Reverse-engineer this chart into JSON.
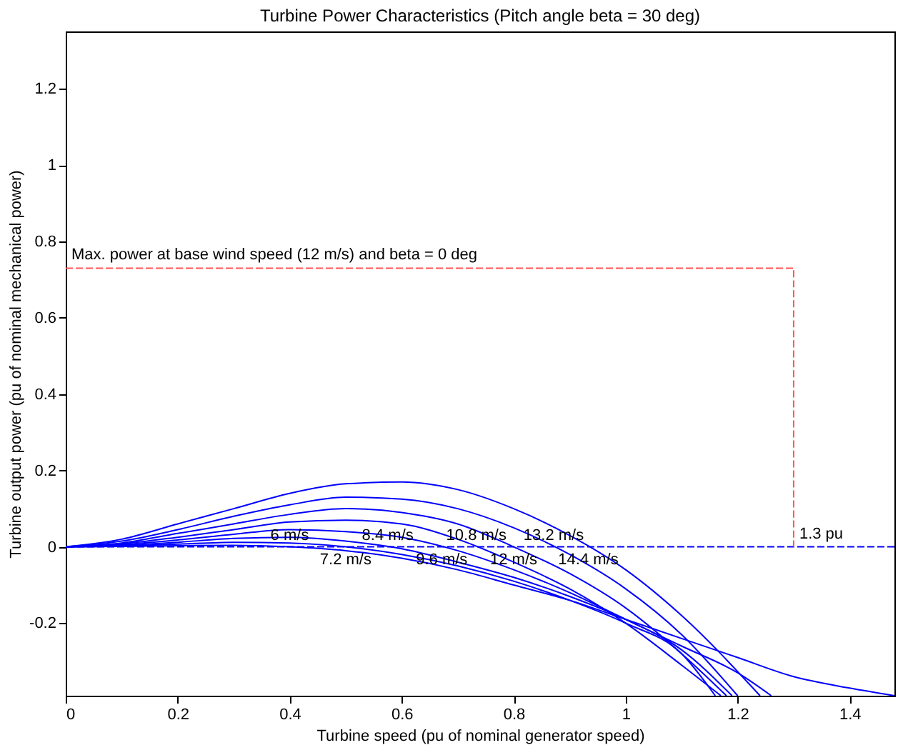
{
  "chart_data": {
    "type": "line",
    "title": "Turbine Power Characteristics (Pitch angle beta = 30 deg)",
    "xlabel": "Turbine speed (pu of nominal generator speed)",
    "ylabel": "Turbine output power (pu of nominal mechanical power)",
    "xlim": [
      0,
      1.48
    ],
    "ylim": [
      -0.39,
      1.35
    ],
    "xticks": [
      0,
      0.2,
      0.4,
      0.6,
      0.8,
      1,
      1.2,
      1.4
    ],
    "yticks": [
      -0.2,
      0,
      0.2,
      0.4,
      0.6,
      0.8,
      1,
      1.2
    ],
    "grid": false,
    "legend": false,
    "marker": "none",
    "line_style": "solid",
    "series": [
      {
        "name": "6 m/s",
        "color": "#0000ff",
        "x": [
          0,
          0.1,
          0.2,
          0.3,
          0.4,
          0.5,
          0.6,
          0.7,
          0.8,
          0.9,
          1.0,
          1.1,
          1.2,
          1.3,
          1.4,
          1.48
        ],
        "values": [
          0,
          0.001,
          0.003,
          0.004,
          0.0,
          -0.01,
          -0.03,
          -0.06,
          -0.1,
          -0.14,
          -0.19,
          -0.24,
          -0.29,
          -0.34,
          -0.37,
          -0.39
        ]
      },
      {
        "name": "7.2 m/s",
        "color": "#0000ff",
        "x": [
          0,
          0.1,
          0.2,
          0.3,
          0.4,
          0.5,
          0.6,
          0.7,
          0.8,
          0.9,
          1.0,
          1.1,
          1.16
        ],
        "values": [
          0,
          0.002,
          0.007,
          0.012,
          0.01,
          0.0,
          -0.02,
          -0.05,
          -0.09,
          -0.14,
          -0.2,
          -0.28,
          -0.39
        ]
      },
      {
        "name": "8.4 m/s",
        "color": "#0000ff",
        "x": [
          0,
          0.1,
          0.2,
          0.3,
          0.4,
          0.5,
          0.6,
          0.7,
          0.8,
          0.9,
          1.0,
          1.1,
          1.19
        ],
        "values": [
          0,
          0.004,
          0.012,
          0.022,
          0.025,
          0.015,
          -0.005,
          -0.04,
          -0.08,
          -0.13,
          -0.19,
          -0.27,
          -0.39
        ]
      },
      {
        "name": "9.6 m/s",
        "color": "#0000ff",
        "x": [
          0,
          0.1,
          0.2,
          0.3,
          0.4,
          0.5,
          0.6,
          0.7,
          0.8,
          0.9,
          1.0,
          1.1,
          1.2,
          1.26
        ],
        "values": [
          0,
          0.006,
          0.018,
          0.033,
          0.045,
          0.04,
          0.025,
          -0.01,
          -0.06,
          -0.12,
          -0.19,
          -0.26,
          -0.33,
          -0.39
        ]
      },
      {
        "name": "10.8 m/s",
        "color": "#0000ff",
        "x": [
          0,
          0.1,
          0.2,
          0.3,
          0.4,
          0.5,
          0.6,
          0.7,
          0.8,
          0.9,
          1.0,
          1.1,
          1.17
        ],
        "values": [
          0,
          0.008,
          0.025,
          0.045,
          0.065,
          0.07,
          0.06,
          0.02,
          -0.04,
          -0.11,
          -0.2,
          -0.31,
          -0.39
        ]
      },
      {
        "name": "12 m/s",
        "color": "#0000ff",
        "x": [
          0,
          0.1,
          0.2,
          0.3,
          0.4,
          0.5,
          0.6,
          0.7,
          0.8,
          0.9,
          1.0,
          1.1,
          1.18
        ],
        "values": [
          0,
          0.01,
          0.035,
          0.06,
          0.085,
          0.1,
          0.09,
          0.06,
          0.0,
          -0.07,
          -0.16,
          -0.28,
          -0.39
        ]
      },
      {
        "name": "13.2 m/s",
        "color": "#0000ff",
        "x": [
          0,
          0.1,
          0.2,
          0.3,
          0.4,
          0.5,
          0.6,
          0.7,
          0.8,
          0.9,
          1.0,
          1.1,
          1.2
        ],
        "values": [
          0,
          0.015,
          0.045,
          0.08,
          0.11,
          0.13,
          0.125,
          0.1,
          0.05,
          -0.02,
          -0.11,
          -0.23,
          -0.39
        ]
      },
      {
        "name": "14.4 m/s",
        "color": "#0000ff",
        "x": [
          0,
          0.1,
          0.2,
          0.3,
          0.4,
          0.5,
          0.6,
          0.7,
          0.8,
          0.9,
          1.0,
          1.1,
          1.24
        ],
        "values": [
          0,
          0.02,
          0.06,
          0.1,
          0.14,
          0.165,
          0.17,
          0.15,
          0.1,
          0.03,
          -0.06,
          -0.18,
          -0.39
        ]
      },
      {
        "color": "#ff5555",
        "line_style": "dashed",
        "x": [
          0,
          1.3,
          1.3
        ],
        "values": [
          0.73,
          0.73,
          0
        ]
      }
    ],
    "ref_lines": [
      {
        "axis": "y",
        "value": 0,
        "color": "#0000ff",
        "line_style": "dashed"
      }
    ],
    "annotations": [
      {
        "text": "Max. power at base wind speed (12 m/s) and beta = 0 deg",
        "x": 0,
        "y": 0.73
      },
      {
        "text": "1.3 pu",
        "x": 1.3,
        "y": 0
      }
    ]
  }
}
